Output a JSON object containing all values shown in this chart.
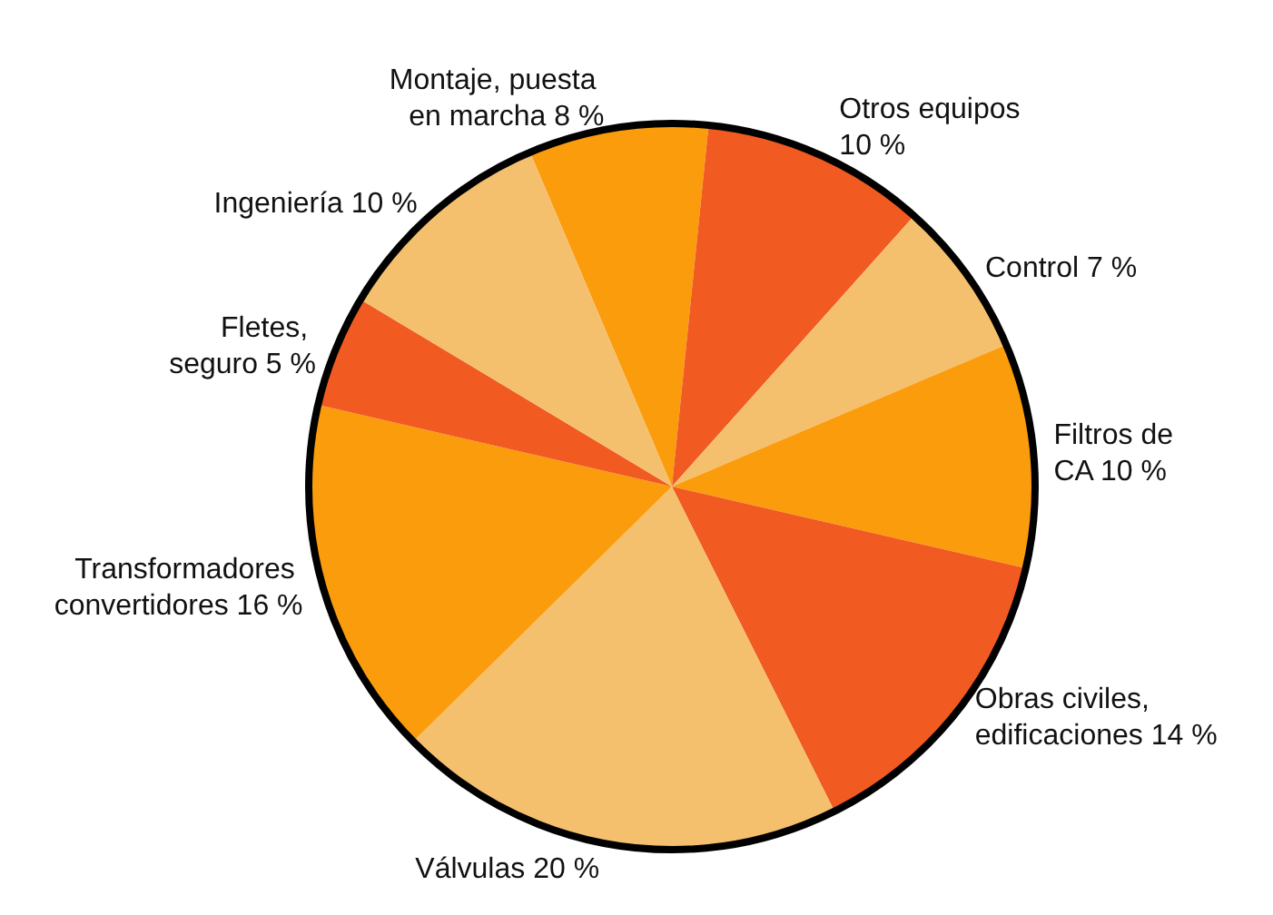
{
  "chart_data": {
    "type": "pie",
    "categories": [
      "Montaje, puesta en marcha",
      "Otros equipos",
      "Control",
      "Filtros de CA",
      "Obras civiles, edificaciones",
      "Válvulas",
      "Transformadores convertidores",
      "Fletes, seguro",
      "Ingeniería"
    ],
    "values": [
      8,
      10,
      7,
      10,
      14,
      20,
      16,
      5,
      10
    ],
    "colors": [
      "#fb9c0d",
      "#f15b22",
      "#f5c06e",
      "#fb9c0d",
      "#f15b22",
      "#f5c06e",
      "#fb9c0d",
      "#f15b22",
      "#f5c06e"
    ],
    "value_labels": [
      "8 %",
      "10 %",
      "7 %",
      "10 %",
      "14 %",
      "20 %",
      "16 %",
      "5 %",
      "10 %"
    ]
  }
}
